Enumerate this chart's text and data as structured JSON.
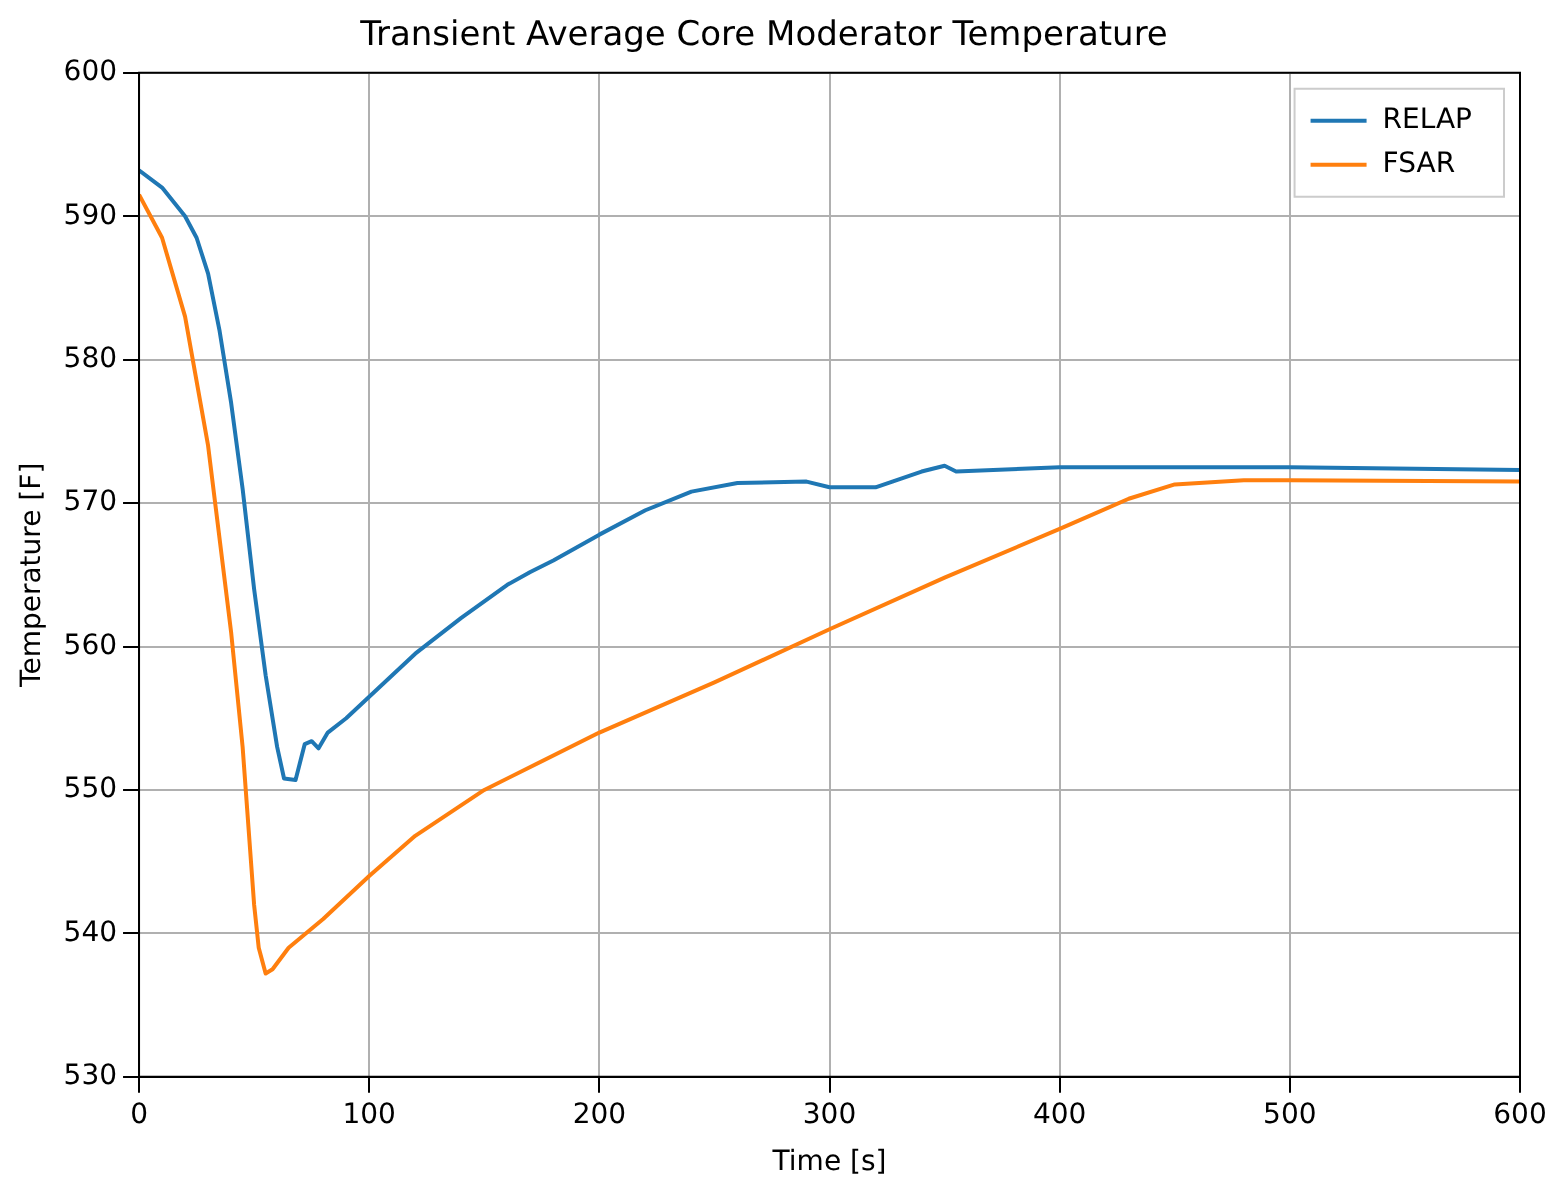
{
  "chart_data": {
    "type": "line",
    "title": "Transient Average Core Moderator Temperature",
    "xlabel": "Time [s]",
    "ylabel": "Temperature [F]",
    "xlim": [
      0,
      600
    ],
    "xticks": [
      0,
      100,
      200,
      300,
      400,
      500,
      600
    ],
    "ylim": [
      530,
      600
    ],
    "yticks": [
      530,
      540,
      550,
      560,
      570,
      580,
      590,
      600
    ],
    "grid": true,
    "legend": "top right",
    "series": [
      {
        "name": "RELAP",
        "color": "#1f77b4",
        "x": [
          0,
          10,
          20,
          25,
          30,
          35,
          40,
          45,
          50,
          55,
          60,
          63,
          68,
          72,
          75,
          78,
          82,
          90,
          100,
          120,
          140,
          160,
          170,
          180,
          200,
          220,
          240,
          260,
          290,
          300,
          320,
          340,
          350,
          355,
          400,
          500,
          600
        ],
        "values": [
          593.2,
          592,
          590,
          588.5,
          586,
          582,
          577,
          571,
          564,
          558,
          553,
          550.8,
          550.7,
          553.2,
          553.4,
          552.9,
          554,
          555,
          556.5,
          559.5,
          562,
          564.3,
          565.2,
          566,
          567.8,
          569.5,
          570.8,
          571.4,
          571.5,
          571.1,
          571.1,
          572.2,
          572.6,
          572.2,
          572.5,
          572.5,
          572.3
        ]
      },
      {
        "name": "FSAR",
        "color": "#ff7f0e",
        "x": [
          0,
          10,
          20,
          30,
          40,
          45,
          50,
          52,
          55,
          58,
          65,
          80,
          100,
          120,
          150,
          200,
          250,
          300,
          350,
          400,
          430,
          450,
          480,
          500,
          600
        ],
        "values": [
          591.5,
          588.5,
          583,
          574,
          561,
          553,
          542,
          539,
          537.2,
          537.5,
          539,
          541,
          544,
          546.8,
          550,
          554,
          557.5,
          561.2,
          564.8,
          568.2,
          570.3,
          571.3,
          571.6,
          571.6,
          571.5
        ]
      }
    ]
  }
}
